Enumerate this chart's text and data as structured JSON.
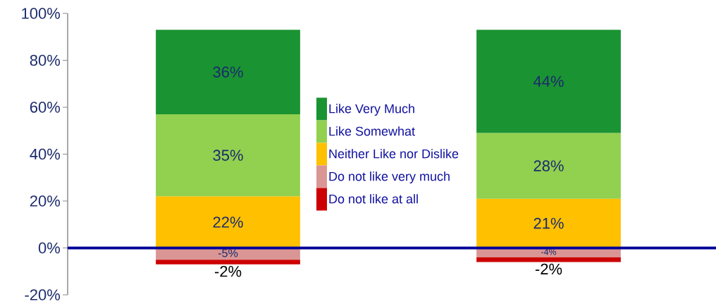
{
  "chart_data": {
    "type": "bar",
    "stacked": true,
    "categories": [
      null,
      null
    ],
    "series": [
      {
        "name": "Neither Like nor Dislike",
        "color": "#ffc000",
        "values": [
          22,
          21
        ],
        "value_labels": [
          "22%",
          "21%"
        ]
      },
      {
        "name": "Like Somewhat",
        "color": "#92d050",
        "values": [
          35,
          28
        ],
        "value_labels": [
          "35%",
          "28%"
        ]
      },
      {
        "name": "Like Very Much",
        "color": "#1a9332",
        "values": [
          36,
          44
        ],
        "value_labels": [
          "36%",
          "44%"
        ]
      },
      {
        "name": "Do not like very much",
        "color": "#da9694",
        "values": [
          -5,
          -4
        ],
        "value_labels": [
          "-5%",
          "-4%"
        ]
      },
      {
        "name": "Do not like at all",
        "color": "#cc0000",
        "values": [
          -2,
          -2
        ],
        "value_labels": [
          "-2%",
          "-2%"
        ]
      }
    ],
    "ylim": [
      -20,
      100
    ],
    "yticks": [
      {
        "value": -20,
        "label": "-20%"
      },
      {
        "value": 0,
        "label": "0%"
      },
      {
        "value": 20,
        "label": "20%"
      },
      {
        "value": 40,
        "label": "40%"
      },
      {
        "value": 60,
        "label": "60%"
      },
      {
        "value": 80,
        "label": "80%"
      },
      {
        "value": 100,
        "label": "100%"
      }
    ],
    "ref_lines": [
      {
        "axis": "y",
        "value": 0,
        "color": "#000099"
      }
    ],
    "legend": "center",
    "tick_labels": "y"
  }
}
